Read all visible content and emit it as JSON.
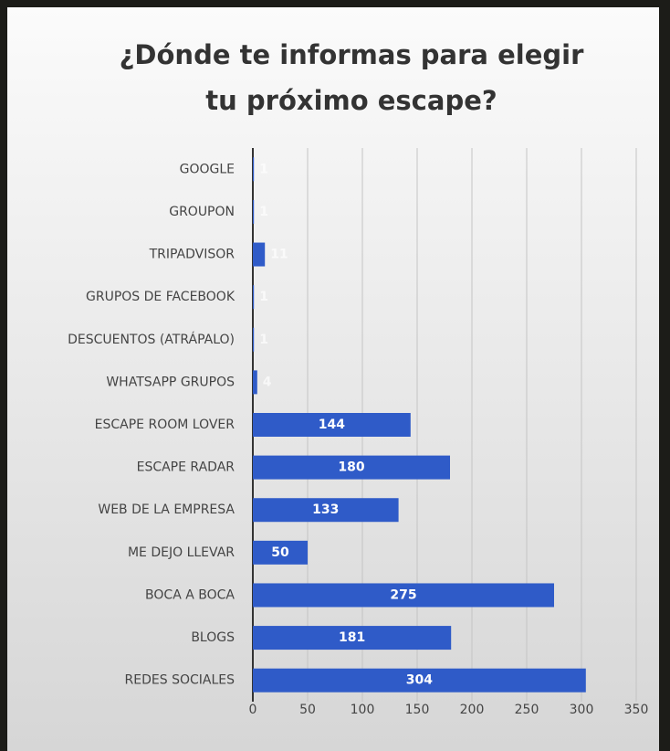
{
  "chart_data": {
    "type": "bar",
    "orientation": "horizontal",
    "title": [
      "¿Dónde te informas para elegir",
      "tu próximo escape?"
    ],
    "categories": [
      "GOOGLE",
      "GROUPON",
      "TRIPADVISOR",
      "GRUPOS DE FACEBOOK",
      "DESCUENTOS (ATRÁPALO)",
      "WHATSAPP GRUPOS",
      "ESCAPE ROOM LOVER",
      "ESCAPE RADAR",
      "WEB DE LA EMPRESA",
      "ME DEJO LLEVAR",
      "BOCA A BOCA",
      "BLOGS",
      "REDES SOCIALES"
    ],
    "values": [
      1,
      1,
      11,
      1,
      1,
      4,
      144,
      180,
      133,
      50,
      275,
      181,
      304
    ],
    "color": "#2f5bc8",
    "xlim": [
      0,
      350
    ],
    "xticks": [
      0,
      50,
      100,
      150,
      200,
      250,
      300,
      350
    ],
    "grid": true
  }
}
